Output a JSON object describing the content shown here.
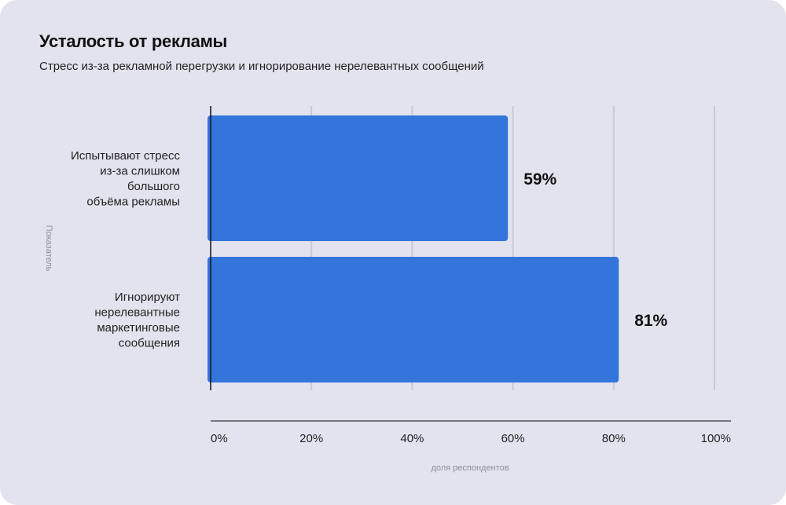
{
  "chart_data": {
    "type": "bar",
    "orientation": "horizontal",
    "title": "Усталость от рекламы",
    "subtitle": "Стресс из-за рекламной перегрузки и игнорирование нерелевантных сообщений",
    "categories": [
      [
        "Испытывают стресс",
        "из-за слишком",
        "большого",
        "объёма рекламы"
      ],
      [
        "Игнорируют",
        "нерелевантные",
        "маркетинговые",
        "сообщения"
      ]
    ],
    "values": [
      59,
      81
    ],
    "value_labels": [
      "59%",
      "81%"
    ],
    "xlabel": "доля респондентов",
    "ylabel": "Показатель",
    "xlim": [
      0,
      100
    ],
    "xticks": [
      "0%",
      "20%",
      "40%",
      "60%",
      "80%",
      "100%"
    ],
    "grid": true,
    "bar_color": "#3375db"
  }
}
